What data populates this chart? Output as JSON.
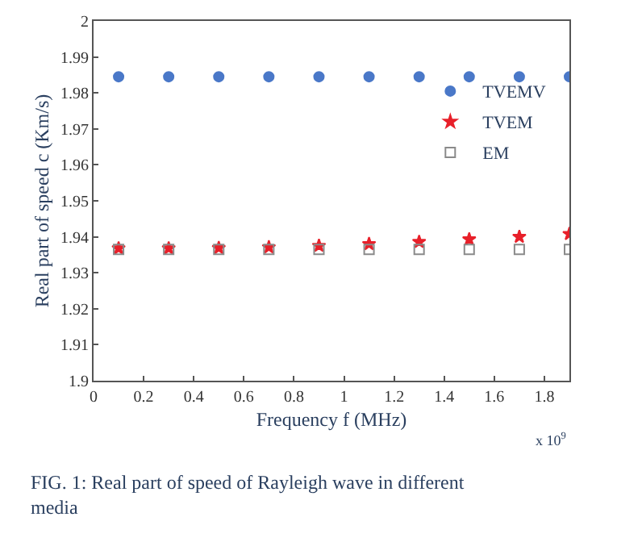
{
  "chart_data": {
    "type": "scatter",
    "xlabel": "Frequency f (MHz)",
    "ylabel": "Real part of speed c (Km/s)",
    "x": [
      0.1,
      0.3,
      0.5,
      0.7,
      0.9,
      1.1,
      1.3,
      1.5,
      1.7,
      1.9
    ],
    "series": [
      {
        "name": "TVEMV",
        "color": "#4a78c8",
        "marker": "circle",
        "values": [
          1.9845,
          1.9845,
          1.9845,
          1.9845,
          1.9845,
          1.9845,
          1.9845,
          1.9845,
          1.9845,
          1.9845
        ]
      },
      {
        "name": "TVEM",
        "color": "#e8202a",
        "marker": "star",
        "values": [
          1.9368,
          1.9368,
          1.9369,
          1.9371,
          1.9375,
          1.938,
          1.9386,
          1.9393,
          1.94,
          1.9408
        ]
      },
      {
        "name": "EM",
        "color": "#8a8a8a",
        "marker": "square-open",
        "values": [
          1.9365,
          1.9365,
          1.9365,
          1.9365,
          1.9365,
          1.9365,
          1.9365,
          1.9365,
          1.9365,
          1.9365
        ]
      }
    ],
    "xlim": [
      0,
      1.9
    ],
    "xticks": [
      0,
      0.2,
      0.4,
      0.6,
      0.8,
      1,
      1.2,
      1.4,
      1.6,
      1.8
    ],
    "ylim": [
      1.9,
      2
    ],
    "yticks": [
      1.9,
      1.91,
      1.92,
      1.93,
      1.94,
      1.95,
      1.96,
      1.97,
      1.98,
      1.99,
      2
    ],
    "legend": "right",
    "annotations": [
      "x 10$^{9}$",
      "FIG. 1: Real part of speed of Rayleigh wave in different media"
    ]
  }
}
